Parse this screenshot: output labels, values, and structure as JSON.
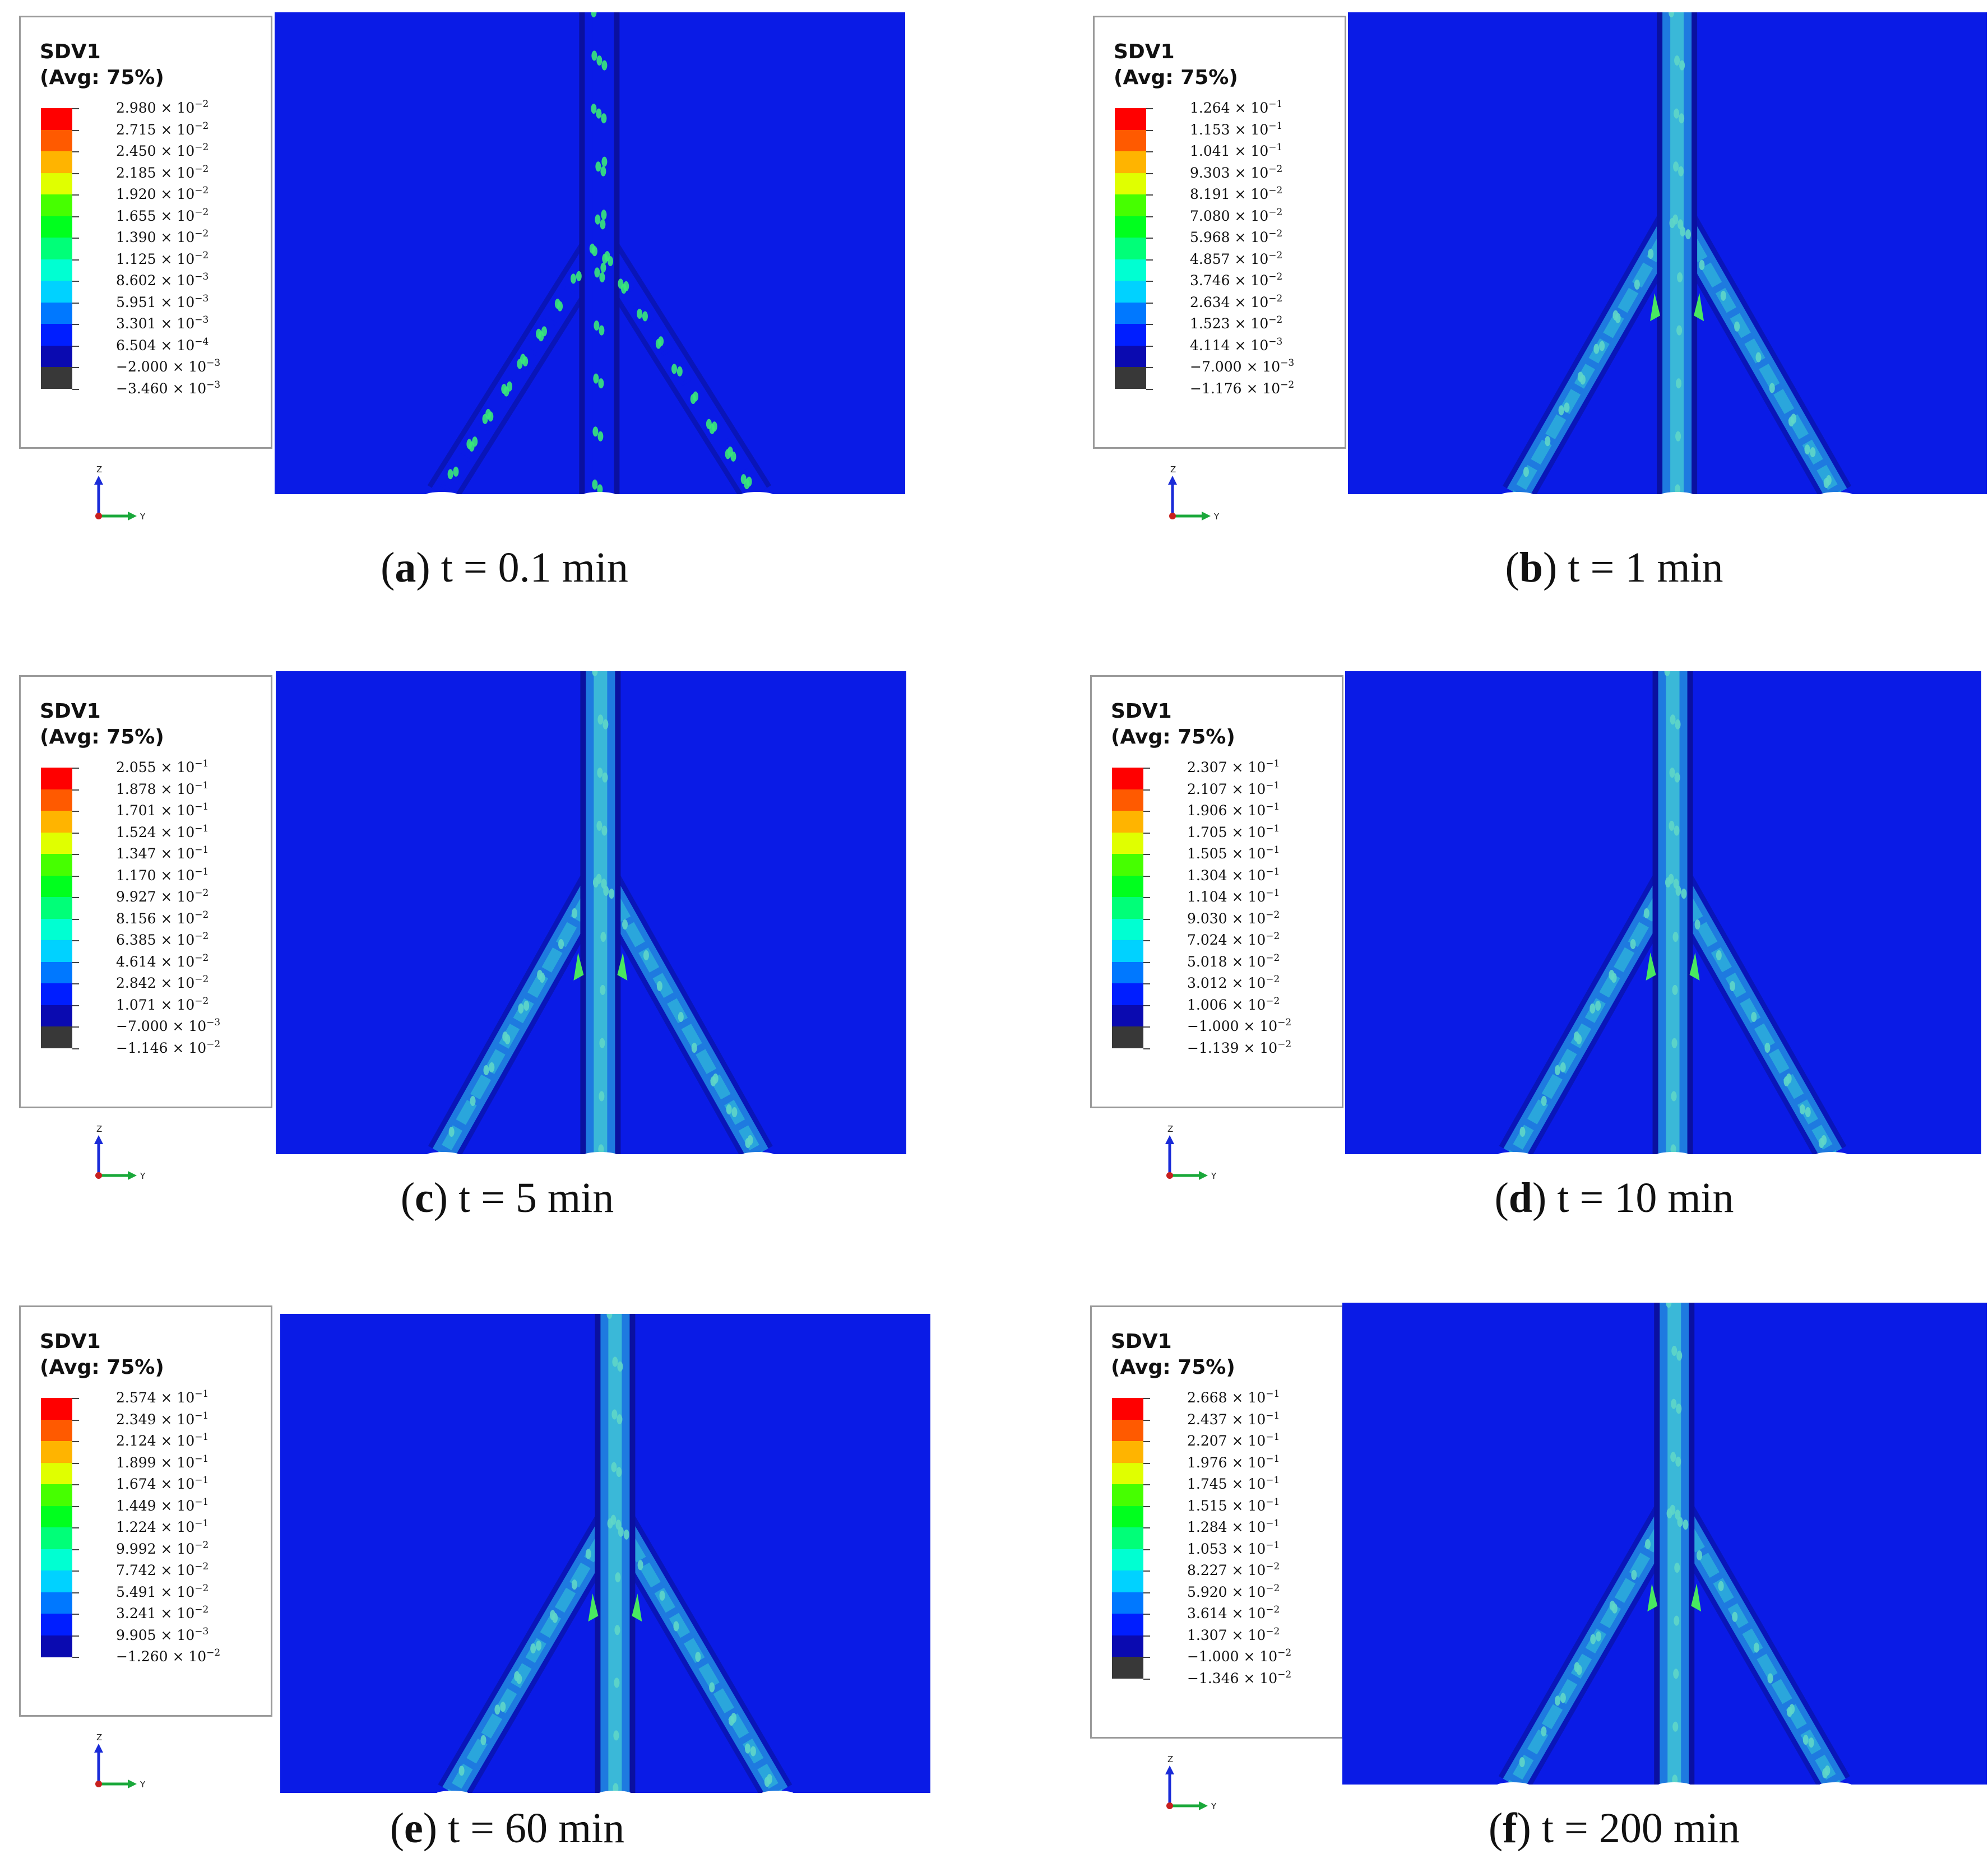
{
  "variable": "SDV1",
  "averaging": "(Avg: 75%)",
  "axis_labels": {
    "vertical": "Z",
    "horizontal": "Y"
  },
  "colors": [
    "#ff0000",
    "#ff5a00",
    "#ffb400",
    "#e0ff00",
    "#46ff00",
    "#00ff1e",
    "#00ff78",
    "#00ffd2",
    "#00d2ff",
    "#0078ff",
    "#001eff",
    "#0a0ab0",
    "#383838"
  ],
  "panels": [
    {
      "letter": "a",
      "time": "t = 0.1 min",
      "values": [
        [
          "2.980",
          "-2"
        ],
        [
          "2.715",
          "-2"
        ],
        [
          "2.450",
          "-2"
        ],
        [
          "2.185",
          "-2"
        ],
        [
          "1.920",
          "-2"
        ],
        [
          "1.655",
          "-2"
        ],
        [
          "1.390",
          "-2"
        ],
        [
          "1.125",
          "-2"
        ],
        [
          "8.602",
          "-3"
        ],
        [
          "5.951",
          "-3"
        ],
        [
          "3.301",
          "-3"
        ],
        [
          "6.504",
          "-4"
        ],
        [
          "−2.000",
          "-3"
        ],
        [
          "−3.460",
          "-3"
        ]
      ]
    },
    {
      "letter": "b",
      "time": "t = 1 min",
      "values": [
        [
          "1.264",
          "-1"
        ],
        [
          "1.153",
          "-1"
        ],
        [
          "1.041",
          "-1"
        ],
        [
          "9.303",
          "-2"
        ],
        [
          "8.191",
          "-2"
        ],
        [
          "7.080",
          "-2"
        ],
        [
          "5.968",
          "-2"
        ],
        [
          "4.857",
          "-2"
        ],
        [
          "3.746",
          "-2"
        ],
        [
          "2.634",
          "-2"
        ],
        [
          "1.523",
          "-2"
        ],
        [
          "4.114",
          "-3"
        ],
        [
          "−7.000",
          "-3"
        ],
        [
          "−1.176",
          "-2"
        ]
      ]
    },
    {
      "letter": "c",
      "time": "t = 5 min",
      "values": [
        [
          "2.055",
          "-1"
        ],
        [
          "1.878",
          "-1"
        ],
        [
          "1.701",
          "-1"
        ],
        [
          "1.524",
          "-1"
        ],
        [
          "1.347",
          "-1"
        ],
        [
          "1.170",
          "-1"
        ],
        [
          "9.927",
          "-2"
        ],
        [
          "8.156",
          "-2"
        ],
        [
          "6.385",
          "-2"
        ],
        [
          "4.614",
          "-2"
        ],
        [
          "2.842",
          "-2"
        ],
        [
          "1.071",
          "-2"
        ],
        [
          "−7.000",
          "-3"
        ],
        [
          "−1.146",
          "-2"
        ]
      ]
    },
    {
      "letter": "d",
      "time": "t = 10 min",
      "values": [
        [
          "2.307",
          "-1"
        ],
        [
          "2.107",
          "-1"
        ],
        [
          "1.906",
          "-1"
        ],
        [
          "1.705",
          "-1"
        ],
        [
          "1.505",
          "-1"
        ],
        [
          "1.304",
          "-1"
        ],
        [
          "1.104",
          "-1"
        ],
        [
          "9.030",
          "-2"
        ],
        [
          "7.024",
          "-2"
        ],
        [
          "5.018",
          "-2"
        ],
        [
          "3.012",
          "-2"
        ],
        [
          "1.006",
          "-2"
        ],
        [
          "−1.000",
          "-2"
        ],
        [
          "−1.139",
          "-2"
        ]
      ]
    },
    {
      "letter": "e",
      "time": "t = 60 min",
      "values": [
        [
          "2.574",
          "-1"
        ],
        [
          "2.349",
          "-1"
        ],
        [
          "2.124",
          "-1"
        ],
        [
          "1.899",
          "-1"
        ],
        [
          "1.674",
          "-1"
        ],
        [
          "1.449",
          "-1"
        ],
        [
          "1.224",
          "-1"
        ],
        [
          "9.992",
          "-2"
        ],
        [
          "7.742",
          "-2"
        ],
        [
          "5.491",
          "-2"
        ],
        [
          "3.241",
          "-2"
        ],
        [
          "9.905",
          "-3"
        ],
        [
          "−1.260",
          "-2"
        ]
      ]
    },
    {
      "letter": "f",
      "time": "t = 200 min",
      "values": [
        [
          "2.668",
          "-1"
        ],
        [
          "2.437",
          "-1"
        ],
        [
          "2.207",
          "-1"
        ],
        [
          "1.976",
          "-1"
        ],
        [
          "1.745",
          "-1"
        ],
        [
          "1.515",
          "-1"
        ],
        [
          "1.284",
          "-1"
        ],
        [
          "1.053",
          "-1"
        ],
        [
          "8.227",
          "-2"
        ],
        [
          "5.920",
          "-2"
        ],
        [
          "3.614",
          "-2"
        ],
        [
          "1.307",
          "-2"
        ],
        [
          "−1.000",
          "-2"
        ],
        [
          "−1.346",
          "-2"
        ]
      ]
    }
  ]
}
